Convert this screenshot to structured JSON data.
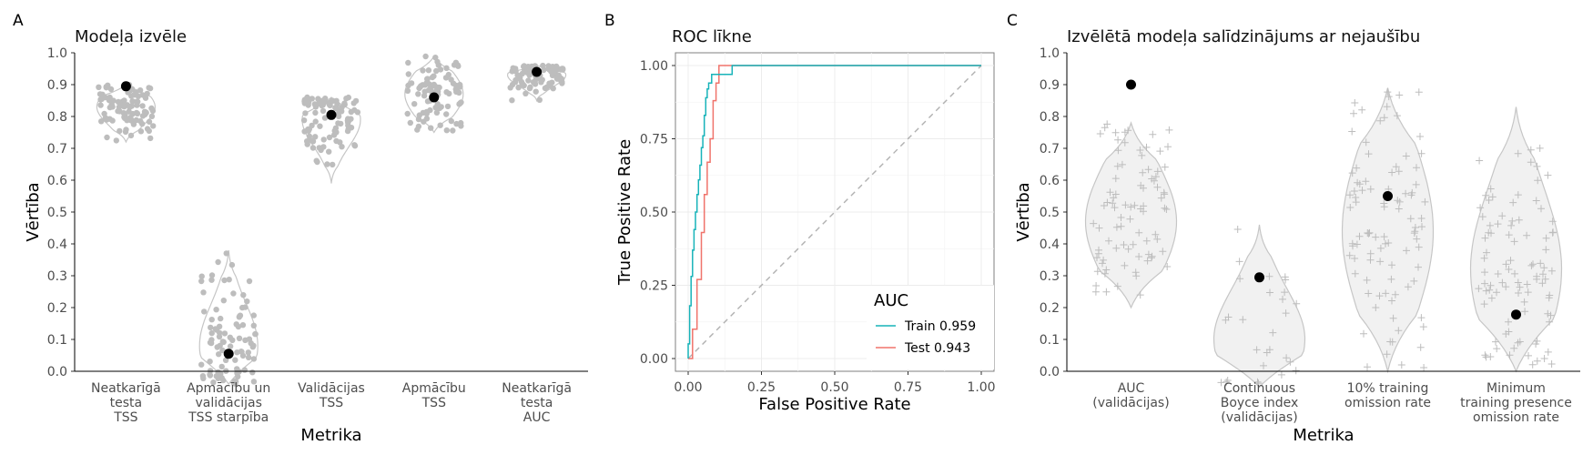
{
  "panel_tags": [
    "A",
    "B",
    "C"
  ],
  "colors": {
    "jitter": "#bdbdbd",
    "violin_stroke": "#c6c6c6",
    "violin_fill_c": "#f1f1f1",
    "point": "#000000",
    "train": "#17b3b9",
    "test": "#f0736b",
    "diagonal": "#b0b0b0",
    "grid": "#ececec"
  },
  "chart_data": [
    {
      "type": "scatter",
      "subtype": "jitter-violin",
      "title": "Modeļa izvēle",
      "xlabel": "Metrika",
      "ylabel": "Vērtība",
      "ylim": [
        0,
        1
      ],
      "yticks": [
        0,
        0.1,
        0.2,
        0.3,
        0.4,
        0.5,
        0.6,
        0.7,
        0.8,
        0.9,
        1.0
      ],
      "categories": [
        [
          "Neatkarīgā",
          "testa",
          "TSS"
        ],
        [
          "Apmācību un",
          "validācijas",
          "TSS starpība"
        ],
        [
          "Validācijas",
          "TSS"
        ],
        [
          "Apmācību",
          "TSS"
        ],
        [
          "Neatkarīgā",
          "testa",
          "AUC"
        ]
      ],
      "selected_values": [
        0.895,
        0.055,
        0.805,
        0.86,
        0.94
      ],
      "ranges": [
        [
          0.72,
          0.9
        ],
        [
          -0.04,
          0.38
        ],
        [
          0.59,
          0.86
        ],
        [
          0.75,
          0.99
        ],
        [
          0.85,
          0.96
        ]
      ],
      "distribution_centers": [
        0.83,
        0.08,
        0.79,
        0.87,
        0.93
      ],
      "grid": false
    },
    {
      "type": "line",
      "title": "ROC līkne",
      "xlabel": "False Positive Rate",
      "ylabel": "True Positive Rate",
      "xlim": [
        0,
        1
      ],
      "ylim": [
        0,
        1
      ],
      "xticks": [
        "0.00",
        "0.25",
        "0.50",
        "0.75",
        "1.00"
      ],
      "yticks": [
        "0.00",
        "0.25",
        "0.50",
        "0.75",
        "1.00"
      ],
      "legend_title": "AUC",
      "legend_position": "bottom-right",
      "grid": true,
      "series": [
        {
          "name": "Train 0.959",
          "color": "#17b3b9",
          "x": [
            0,
            0,
            0.005,
            0.005,
            0.01,
            0.01,
            0.015,
            0.015,
            0.02,
            0.02,
            0.025,
            0.025,
            0.03,
            0.03,
            0.035,
            0.035,
            0.04,
            0.04,
            0.045,
            0.045,
            0.05,
            0.05,
            0.055,
            0.055,
            0.06,
            0.06,
            0.065,
            0.065,
            0.07,
            0.07,
            0.075,
            0.075,
            0.08,
            0.08,
            0.1,
            0.1,
            0.13,
            0.13,
            0.15,
            0.15,
            1.0
          ],
          "y": [
            0,
            0.05,
            0.05,
            0.18,
            0.18,
            0.28,
            0.28,
            0.37,
            0.37,
            0.44,
            0.44,
            0.5,
            0.5,
            0.56,
            0.56,
            0.61,
            0.61,
            0.66,
            0.66,
            0.72,
            0.72,
            0.76,
            0.76,
            0.83,
            0.83,
            0.89,
            0.89,
            0.92,
            0.92,
            0.94,
            0.94,
            0.94,
            0.94,
            0.97,
            0.97,
            0.97,
            0.97,
            0.97,
            0.97,
            1.0,
            1.0
          ]
        },
        {
          "name": "Test 0.943",
          "color": "#f0736b",
          "x": [
            0,
            0.015,
            0.015,
            0.03,
            0.03,
            0.045,
            0.045,
            0.055,
            0.055,
            0.065,
            0.065,
            0.075,
            0.075,
            0.085,
            0.085,
            0.095,
            0.095,
            0.105,
            0.105,
            1.0
          ],
          "y": [
            0,
            0,
            0.1,
            0.1,
            0.27,
            0.27,
            0.43,
            0.43,
            0.56,
            0.56,
            0.67,
            0.67,
            0.75,
            0.75,
            0.88,
            0.88,
            0.94,
            0.94,
            1.0,
            1.0
          ]
        },
        {
          "name": "",
          "color": "#b0b0b0",
          "dashed": true,
          "x": [
            0,
            1
          ],
          "y": [
            0,
            1
          ]
        }
      ]
    },
    {
      "type": "scatter",
      "subtype": "jitter-violin",
      "title": "Izvēlētā modeļa salīdzinājums ar nejaušību",
      "xlabel": "Metrika",
      "ylabel": "Vērtība",
      "ylim": [
        0,
        1
      ],
      "yticks": [
        0,
        0.1,
        0.2,
        0.3,
        0.4,
        0.5,
        0.6,
        0.7,
        0.8,
        0.9,
        1.0
      ],
      "categories": [
        [
          "AUC",
          "(validācijas)"
        ],
        [
          "Continuous",
          "Boyce index",
          "(validācijas)"
        ],
        [
          "10% training",
          "omission rate"
        ],
        [
          "Minimum",
          "training presence",
          "omission rate"
        ]
      ],
      "selected_values": [
        0.9,
        0.295,
        0.55,
        0.178
      ],
      "ranges": [
        [
          0.2,
          0.78
        ],
        [
          -0.05,
          0.46
        ],
        [
          0,
          0.89
        ],
        [
          0,
          0.83
        ]
      ],
      "distribution_centers": [
        0.47,
        0.1,
        0.44,
        0.32
      ],
      "grid": false
    }
  ]
}
